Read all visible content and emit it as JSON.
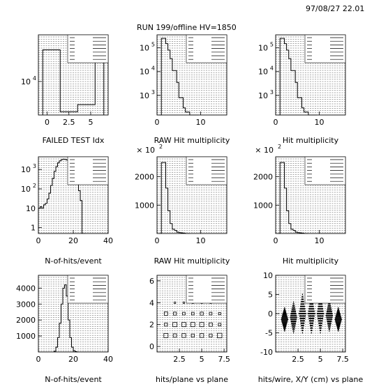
{
  "header": {
    "datetime": "97/08/27   22.01",
    "title": "RUN 199/offline   HV=1850"
  },
  "chart_data": [
    {
      "type": "histogram",
      "title": "FAILED TEST Idx",
      "log_y": true,
      "xlim": [
        -1,
        7
      ],
      "ylim": [
        1500,
        140000
      ],
      "x_ticks": [
        "0",
        "2.5",
        "5"
      ],
      "y_ticks": [
        {
          "v": 10000,
          "label": "10",
          "exp": "4"
        }
      ],
      "bins": {
        "start": -0.5,
        "width": 1,
        "values": [
          60000,
          60000,
          1800,
          1800,
          2700,
          2700,
          60000
        ]
      }
    },
    {
      "type": "histogram",
      "title": "RAW Hit multiplicity",
      "log_y": true,
      "xlim": [
        0,
        16
      ],
      "ylim": [
        150,
        350000
      ],
      "x_ticks": [
        "0",
        "10"
      ],
      "y_ticks": [
        {
          "v": 1000,
          "label": "10",
          "exp": "3"
        },
        {
          "v": 10000,
          "label": "10",
          "exp": "4"
        },
        {
          "v": 100000,
          "label": "10",
          "exp": "5"
        }
      ],
      "bins": {
        "start": 0.5,
        "width": 0.5,
        "values": [
          0,
          250000,
          250000,
          150000,
          80000,
          35000,
          11000,
          11000,
          3500,
          800,
          800,
          300,
          200,
          200,
          0,
          0,
          0,
          0
        ]
      }
    },
    {
      "type": "histogram",
      "title": "Hit multiplicity",
      "log_y": true,
      "xlim": [
        0,
        16
      ],
      "ylim": [
        150,
        350000
      ],
      "x_ticks": [
        "0",
        "10"
      ],
      "y_ticks": [
        {
          "v": 1000,
          "label": "10",
          "exp": "3"
        },
        {
          "v": 10000,
          "label": "10",
          "exp": "4"
        },
        {
          "v": 100000,
          "label": "10",
          "exp": "5"
        }
      ],
      "bins": {
        "start": 0.5,
        "width": 0.5,
        "values": [
          0,
          250000,
          250000,
          150000,
          80000,
          35000,
          11000,
          11000,
          3500,
          800,
          800,
          300,
          200,
          200,
          0,
          0,
          0,
          0
        ]
      }
    },
    {
      "type": "histogram",
      "title": "N-of-hits/event",
      "log_y": true,
      "xlim": [
        0,
        40
      ],
      "ylim": [
        0.5,
        4500
      ],
      "x_ticks": [
        "0",
        "20",
        "40"
      ],
      "y_ticks": [
        {
          "v": 1,
          "label": "1",
          "exp": ""
        },
        {
          "v": 10,
          "label": "10",
          "exp": ""
        },
        {
          "v": 100,
          "label": "10",
          "exp": "2"
        },
        {
          "v": 1000,
          "label": "10",
          "exp": "3"
        }
      ],
      "bins": {
        "start": 0,
        "width": 1,
        "values": [
          10,
          12,
          10,
          15,
          18,
          30,
          60,
          150,
          350,
          800,
          1400,
          2200,
          2800,
          3200,
          3400,
          3300,
          3100,
          2800,
          2100,
          1500,
          900,
          450,
          200,
          80,
          25,
          0,
          0
        ]
      }
    },
    {
      "type": "histogram",
      "title": "RAW Hit multiplicity",
      "log_y": false,
      "xlim": [
        0,
        16
      ],
      "ylim": [
        0,
        2700
      ],
      "y_unit": "× 10",
      "y_unit_exp": "2",
      "x_ticks": [
        "0",
        "10"
      ],
      "y_ticks": [
        {
          "v": 1000,
          "label": "1000",
          "exp": ""
        },
        {
          "v": 2000,
          "label": "2000",
          "exp": ""
        }
      ],
      "bins": {
        "start": 0.5,
        "width": 0.5,
        "values": [
          0,
          2500,
          2500,
          1600,
          800,
          350,
          150,
          110,
          50,
          30,
          20,
          10,
          0,
          0
        ]
      }
    },
    {
      "type": "histogram",
      "title": "Hit multiplicity",
      "log_y": false,
      "xlim": [
        0,
        16
      ],
      "ylim": [
        0,
        2700
      ],
      "y_unit": "× 10",
      "y_unit_exp": "2",
      "x_ticks": [
        "0",
        "10"
      ],
      "y_ticks": [
        {
          "v": 1000,
          "label": "1000",
          "exp": ""
        },
        {
          "v": 2000,
          "label": "2000",
          "exp": ""
        }
      ],
      "bins": {
        "start": 0.5,
        "width": 0.5,
        "values": [
          0,
          2500,
          2500,
          1600,
          800,
          350,
          150,
          110,
          50,
          30,
          20,
          10,
          0,
          0
        ]
      }
    },
    {
      "type": "histogram",
      "title": "N-of-hits/event",
      "log_y": false,
      "xlim": [
        0,
        40
      ],
      "ylim": [
        0,
        4800
      ],
      "x_ticks": [
        "0",
        "20",
        "40"
      ],
      "y_ticks": [
        {
          "v": 1000,
          "label": "1000",
          "exp": ""
        },
        {
          "v": 2000,
          "label": "2000",
          "exp": ""
        },
        {
          "v": 3000,
          "label": "3000",
          "exp": ""
        },
        {
          "v": 4000,
          "label": "4000",
          "exp": ""
        }
      ],
      "bins": {
        "start": 9,
        "width": 1,
        "values": [
          50,
          300,
          900,
          1800,
          3000,
          4000,
          4200,
          3500,
          2000,
          900,
          300,
          80,
          20,
          0
        ]
      }
    },
    {
      "type": "box2d",
      "title": "hits/plane vs plane",
      "xlim": [
        0,
        7.8
      ],
      "ylim": [
        -0.5,
        6.5
      ],
      "x_ticks": [
        "2.5",
        "5",
        "7.5"
      ],
      "y_ticks": [
        "0",
        "2",
        "4",
        "6"
      ],
      "boxes": [
        [
          1,
          1,
          0.55
        ],
        [
          2,
          1,
          0.45
        ],
        [
          3,
          1,
          0.5
        ],
        [
          4,
          1,
          0.4
        ],
        [
          5,
          1,
          0.5
        ],
        [
          6,
          1,
          0.4
        ],
        [
          7,
          1,
          0.6
        ],
        [
          1,
          2,
          0.4
        ],
        [
          2,
          2,
          0.55
        ],
        [
          3,
          2,
          0.55
        ],
        [
          4,
          2,
          0.55
        ],
        [
          5,
          2,
          0.55
        ],
        [
          6,
          2,
          0.45
        ],
        [
          7,
          2,
          0.35
        ],
        [
          1,
          3,
          0.45
        ],
        [
          2,
          3,
          0.4
        ],
        [
          3,
          3,
          0.35
        ],
        [
          4,
          3,
          0.35
        ],
        [
          5,
          3,
          0.4
        ],
        [
          6,
          3,
          0.35
        ],
        [
          7,
          3,
          0.3
        ],
        [
          2,
          4,
          0.2
        ],
        [
          3,
          4,
          0.2
        ],
        [
          4,
          4,
          0.2
        ],
        [
          5,
          4,
          0.2
        ],
        [
          6,
          4,
          0.2
        ]
      ]
    },
    {
      "type": "scatter2d",
      "title": "hits/wire, X/Y (cm) vs plane",
      "xlim": [
        0,
        7.8
      ],
      "ylim": [
        -10,
        10
      ],
      "x_ticks": [
        "2.5",
        "5",
        "7.5"
      ],
      "y_ticks": [
        "-10",
        "-5",
        "0",
        "5",
        "10"
      ],
      "columns": [
        {
          "x": 1,
          "center": -1.5,
          "spread": 3
        },
        {
          "x": 2,
          "center": -1,
          "spread": 4
        },
        {
          "x": 3,
          "center": 0,
          "spread": 5
        },
        {
          "x": 4,
          "center": 0,
          "spread": 5
        },
        {
          "x": 5,
          "center": 0,
          "spread": 5
        },
        {
          "x": 6,
          "center": -0.5,
          "spread": 4
        },
        {
          "x": 7,
          "center": -1.5,
          "spread": 3
        }
      ]
    }
  ]
}
